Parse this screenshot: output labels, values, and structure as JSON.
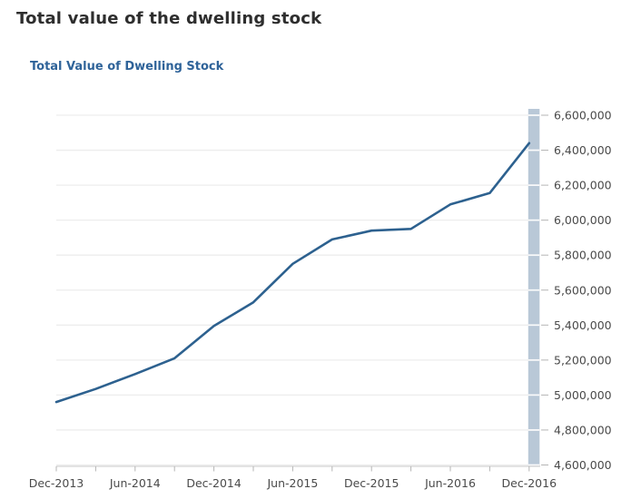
{
  "header": {
    "title": "Total value of the dwelling stock"
  },
  "chart_data": {
    "type": "line",
    "title": "Total Value of Dwelling Stock",
    "categories": [
      "Dec-2013",
      "Mar-2014",
      "Jun-2014",
      "Sep-2014",
      "Dec-2014",
      "Mar-2015",
      "Jun-2015",
      "Sep-2015",
      "Dec-2015",
      "Mar-2016",
      "Jun-2016",
      "Sep-2016",
      "Dec-2016"
    ],
    "values": [
      4960000,
      5035000,
      5120000,
      5210000,
      5395000,
      5530000,
      5750000,
      5890000,
      5940000,
      5950000,
      6090000,
      6155000,
      6440000
    ],
    "series": [
      {
        "name": "Total Value of Dwelling Stock",
        "values": [
          4960000,
          5035000,
          5120000,
          5210000,
          5395000,
          5530000,
          5750000,
          5890000,
          5940000,
          5950000,
          6090000,
          6155000,
          6440000
        ]
      }
    ],
    "x_axis_labels_shown": [
      "Dec-2013",
      "Jun-2014",
      "Dec-2014",
      "Jun-2015",
      "Dec-2015",
      "Jun-2016",
      "Dec-2016"
    ],
    "ylim": [
      4600000,
      6600000
    ],
    "ytick_step": 200000,
    "ytick_labels": [
      "4,600,000",
      "4,800,000",
      "5,000,000",
      "5,200,000",
      "5,400,000",
      "5,600,000",
      "5,800,000",
      "6,000,000",
      "6,200,000",
      "6,400,000",
      "6,600,000"
    ],
    "y_axis_position": "right",
    "grid": "horizontal",
    "legend": "none",
    "highlight_column": "Dec-2016",
    "colors": {
      "line": "#2d618f",
      "highlight_band": "#b9c8d7",
      "gridline": "#ededed",
      "grid_on_band": "rgba(255,255,255,0.75)",
      "axis": "#c8c8c8",
      "tick": "#b5b5b5",
      "label": "#4a4a4a",
      "title": "#2e2e2e",
      "chart_title": "#2f6399"
    }
  }
}
